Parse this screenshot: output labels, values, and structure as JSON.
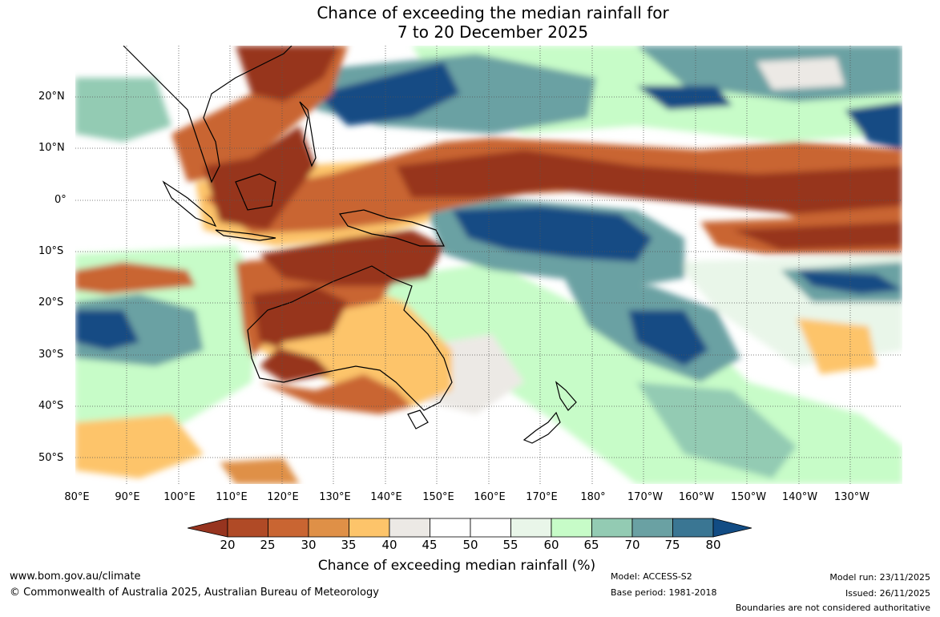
{
  "title": {
    "line1": "Chance of exceeding the median rainfall for",
    "line2": "7 to 20 December 2025"
  },
  "map": {
    "projection": "equirectangular",
    "lon_range": [
      80,
      240
    ],
    "lat_range": [
      -55,
      30
    ],
    "lat_labels": [
      "20°N",
      "10°N",
      "0°",
      "10°S",
      "20°S",
      "30°S",
      "40°S",
      "50°S"
    ],
    "lon_labels": [
      "80°E",
      "90°E",
      "100°E",
      "110°E",
      "120°E",
      "130°E",
      "140°E",
      "150°E",
      "160°E",
      "170°E",
      "180°",
      "170°W",
      "160°W",
      "150°W",
      "140°W",
      "130°W"
    ],
    "regions": [
      {
        "name": "equatorial-dry-band",
        "category": "below",
        "percent": 22
      },
      {
        "name": "northern-australia-dry",
        "category": "below",
        "percent": 25
      },
      {
        "name": "south-china-sea-dry",
        "category": "below",
        "percent": 25
      },
      {
        "name": "western-australia-dry",
        "category": "below",
        "percent": 30
      },
      {
        "name": "southwest-pacific-wet",
        "category": "above",
        "percent": 78
      },
      {
        "name": "north-pacific-wet",
        "category": "above",
        "percent": 75
      },
      {
        "name": "southern-indian-ocean-wet",
        "category": "above",
        "percent": 75
      },
      {
        "name": "southeast-pacific-wet",
        "category": "above",
        "percent": 72
      }
    ]
  },
  "colorbar": {
    "colors": [
      "#97341f",
      "#b04a26",
      "#c96532",
      "#df9047",
      "#fdc46a",
      "#ece9e5",
      "#ffffff",
      "#ffffff",
      "#e9f6e9",
      "#c7fcc8",
      "#93cbb3",
      "#6aa1a3",
      "#3a7693",
      "#124c84"
    ],
    "tick_labels": [
      "20",
      "25",
      "30",
      "35",
      "40",
      "45",
      "50",
      "55",
      "60",
      "65",
      "70",
      "75",
      "80"
    ],
    "label": "Chance of exceeding median rainfall (%)"
  },
  "footer": {
    "website": "www.bom.gov.au/climate",
    "copyright": "© Commonwealth of Australia 2025, Australian Bureau of Meteorology",
    "model": "Model: ACCESS-S2",
    "base_period": "Base period: 1981-2018",
    "model_run": "Model run: 23/11/2025",
    "issued": "Issued: 26/11/2025",
    "disclaimer": "Boundaries are not considered authoritative"
  }
}
